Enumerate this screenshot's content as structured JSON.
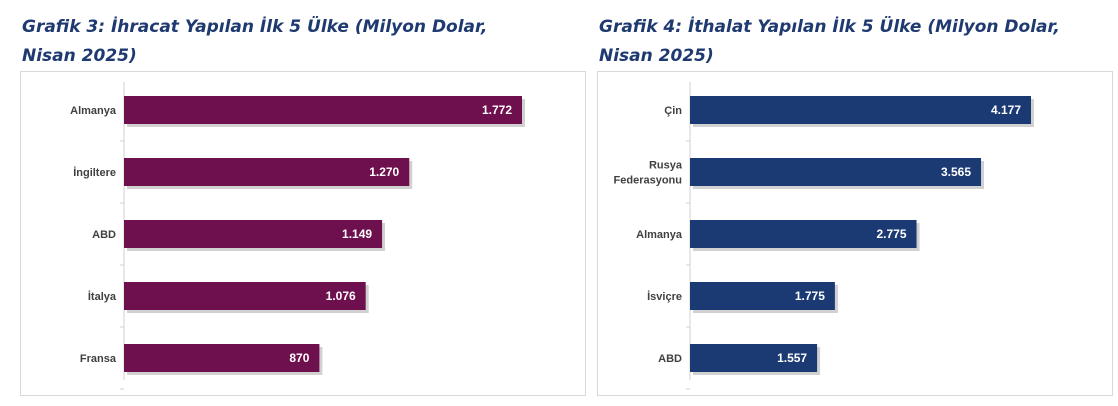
{
  "chart_data": [
    {
      "type": "bar",
      "orientation": "horizontal",
      "title": "Grafik 3: İhracat Yapılan İlk 5 Ülke (Milyon Dolar, Nisan 2025)",
      "categories": [
        "Almanya",
        "İngiltere",
        "ABD",
        "İtalya",
        "Fransa"
      ],
      "values": [
        1772,
        1270,
        1149,
        1076,
        870
      ],
      "data_labels": [
        "1.772",
        "1.270",
        "1.149",
        "1.076",
        "870"
      ],
      "bar_color": "#6e0f4e",
      "grid": false,
      "legend": "none"
    },
    {
      "type": "bar",
      "orientation": "horizontal",
      "title": "Grafik 4: İthalat Yapılan İlk 5 Ülke (Milyon Dolar, Nisan 2025)",
      "categories": [
        "Çin",
        "Rusya Federasyonu",
        "Almanya",
        "İsviçre",
        "ABD"
      ],
      "values": [
        4177,
        3565,
        2775,
        1775,
        1557
      ],
      "data_labels": [
        "4.177",
        "3.565",
        "2.775",
        "1.775",
        "1.557"
      ],
      "bar_color": "#1b3a74",
      "grid": false,
      "legend": "none"
    }
  ],
  "colors": {
    "title": "#1f3a70",
    "axis_line": "#d0d0d0",
    "frame": "#d9d9d9"
  }
}
